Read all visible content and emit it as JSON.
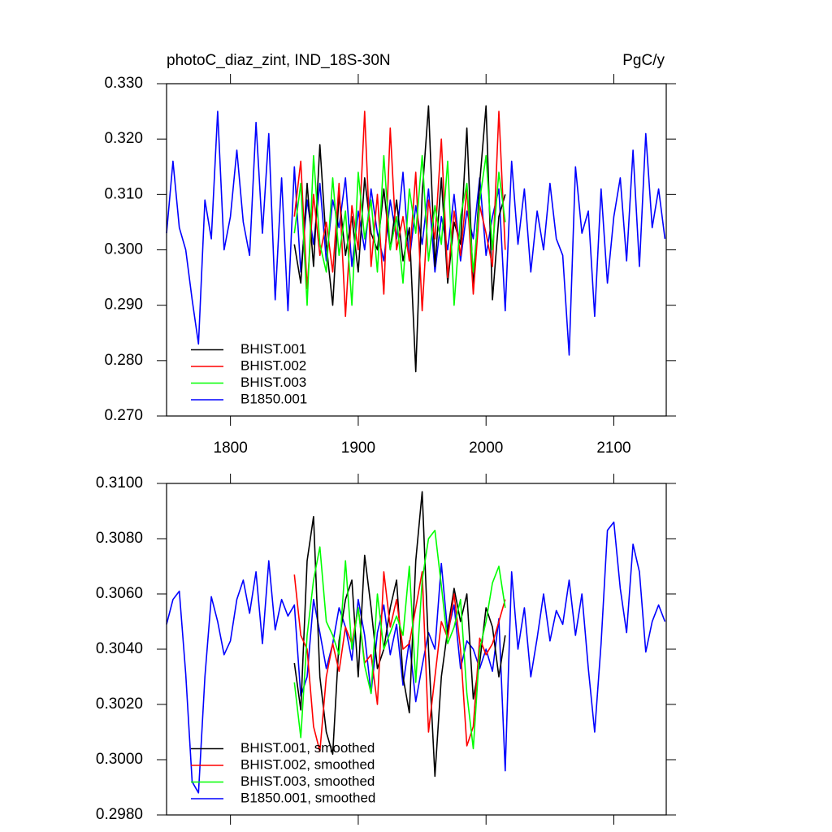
{
  "chart_data": [
    {
      "type": "line",
      "title": "photoC_diaz_zint, IND_18S-30N",
      "units": "PgC/y",
      "xlim": [
        1750,
        2141
      ],
      "xticks": [
        1800,
        1900,
        2000,
        2100
      ],
      "xtick_labels": true,
      "ylim": [
        0.27,
        0.33
      ],
      "yticks": [
        {
          "value": 0.27,
          "label": "0.270"
        },
        {
          "value": 0.28,
          "label": "0.280"
        },
        {
          "value": 0.29,
          "label": "0.290"
        },
        {
          "value": 0.3,
          "label": "0.300"
        },
        {
          "value": 0.31,
          "label": "0.310"
        },
        {
          "value": 0.32,
          "label": "0.320"
        },
        {
          "value": 0.33,
          "label": "0.330"
        }
      ],
      "legend": "lower left",
      "series": [
        {
          "name": "B1850.001",
          "color": "#0000ff",
          "x": [
            1750,
            1755,
            1760,
            1765,
            1770,
            1775,
            1780,
            1785,
            1790,
            1795,
            1800,
            1805,
            1810,
            1815,
            1820,
            1825,
            1830,
            1835,
            1840,
            1845,
            1850,
            1855,
            1860,
            1865,
            1870,
            1875,
            1880,
            1885,
            1890,
            1895,
            1900,
            1905,
            1910,
            1915,
            1920,
            1925,
            1930,
            1935,
            1940,
            1945,
            1950,
            1955,
            1960,
            1965,
            1970,
            1975,
            1980,
            1985,
            1990,
            1995,
            2000,
            2005,
            2010,
            2015,
            2020,
            2025,
            2030,
            2035,
            2040,
            2045,
            2050,
            2055,
            2060,
            2065,
            2070,
            2075,
            2080,
            2085,
            2090,
            2095,
            2100,
            2105,
            2110,
            2115,
            2120,
            2125,
            2130,
            2135,
            2140
          ],
          "values": [
            0.303,
            0.316,
            0.304,
            0.3,
            0.291,
            0.283,
            0.309,
            0.302,
            0.325,
            0.3,
            0.306,
            0.318,
            0.305,
            0.299,
            0.323,
            0.303,
            0.321,
            0.291,
            0.313,
            0.289,
            0.315,
            0.296,
            0.309,
            0.301,
            0.312,
            0.298,
            0.309,
            0.304,
            0.313,
            0.297,
            0.307,
            0.3,
            0.311,
            0.303,
            0.298,
            0.309,
            0.302,
            0.314,
            0.298,
            0.308,
            0.301,
            0.311,
            0.296,
            0.306,
            0.3,
            0.31,
            0.298,
            0.307,
            0.302,
            0.313,
            0.299,
            0.306,
            0.311,
            0.289,
            0.316,
            0.301,
            0.311,
            0.296,
            0.307,
            0.3,
            0.312,
            0.302,
            0.299,
            0.281,
            0.315,
            0.303,
            0.307,
            0.288,
            0.311,
            0.294,
            0.306,
            0.313,
            0.298,
            0.318,
            0.297,
            0.321,
            0.304,
            0.311,
            0.302
          ]
        },
        {
          "name": "BHIST.001",
          "color": "#000000",
          "x": [
            1850,
            1855,
            1860,
            1865,
            1870,
            1875,
            1880,
            1885,
            1890,
            1895,
            1900,
            1905,
            1910,
            1915,
            1920,
            1925,
            1930,
            1935,
            1940,
            1945,
            1950,
            1955,
            1960,
            1965,
            1970,
            1975,
            1980,
            1985,
            1990,
            1995,
            2000,
            2005,
            2010,
            2015
          ],
          "values": [
            0.301,
            0.294,
            0.312,
            0.297,
            0.319,
            0.301,
            0.29,
            0.31,
            0.299,
            0.306,
            0.296,
            0.313,
            0.303,
            0.3,
            0.311,
            0.3,
            0.309,
            0.298,
            0.304,
            0.278,
            0.31,
            0.326,
            0.297,
            0.313,
            0.294,
            0.305,
            0.301,
            0.322,
            0.293,
            0.312,
            0.326,
            0.291,
            0.306,
            0.31
          ]
        },
        {
          "name": "BHIST.002",
          "color": "#ff0000",
          "x": [
            1850,
            1855,
            1860,
            1865,
            1870,
            1875,
            1880,
            1885,
            1890,
            1895,
            1900,
            1905,
            1910,
            1915,
            1920,
            1925,
            1930,
            1935,
            1940,
            1945,
            1950,
            1955,
            1960,
            1965,
            1970,
            1975,
            1980,
            1985,
            1990,
            1995,
            2000,
            2005,
            2010,
            2015
          ],
          "values": [
            0.306,
            0.316,
            0.293,
            0.31,
            0.299,
            0.305,
            0.296,
            0.312,
            0.288,
            0.308,
            0.3,
            0.325,
            0.297,
            0.31,
            0.292,
            0.322,
            0.3,
            0.306,
            0.298,
            0.314,
            0.289,
            0.309,
            0.302,
            0.32,
            0.295,
            0.307,
            0.299,
            0.311,
            0.292,
            0.308,
            0.303,
            0.297,
            0.325,
            0.3
          ]
        },
        {
          "name": "BHIST.003",
          "color": "#00ff00",
          "x": [
            1850,
            1855,
            1860,
            1865,
            1870,
            1875,
            1880,
            1885,
            1890,
            1895,
            1900,
            1905,
            1910,
            1915,
            1920,
            1925,
            1930,
            1935,
            1940,
            1945,
            1950,
            1955,
            1960,
            1965,
            1970,
            1975,
            1980,
            1985,
            1990,
            1995,
            2000,
            2005,
            2010,
            2015
          ],
          "values": [
            0.303,
            0.312,
            0.29,
            0.317,
            0.301,
            0.296,
            0.313,
            0.299,
            0.307,
            0.29,
            0.314,
            0.302,
            0.309,
            0.296,
            0.317,
            0.3,
            0.306,
            0.294,
            0.311,
            0.303,
            0.317,
            0.298,
            0.308,
            0.301,
            0.316,
            0.29,
            0.306,
            0.312,
            0.296,
            0.309,
            0.317,
            0.3,
            0.314,
            0.305
          ]
        }
      ],
      "legend_order": [
        "BHIST.001",
        "BHIST.002",
        "BHIST.003",
        "B1850.001"
      ]
    },
    {
      "type": "line",
      "xlim": [
        1750,
        2141
      ],
      "xticks": [
        1800,
        1900,
        2000,
        2100
      ],
      "xtick_labels": false,
      "ylim": [
        0.298,
        0.31
      ],
      "yticks": [
        {
          "value": 0.298,
          "label": "0.2980"
        },
        {
          "value": 0.3,
          "label": "0.3000"
        },
        {
          "value": 0.302,
          "label": "0.3020"
        },
        {
          "value": 0.304,
          "label": "0.3040"
        },
        {
          "value": 0.306,
          "label": "0.3060"
        },
        {
          "value": 0.308,
          "label": "0.3080"
        },
        {
          "value": 0.31,
          "label": "0.3100"
        }
      ],
      "legend": "lower left",
      "series": [
        {
          "name": "B1850.001, smoothed",
          "color": "#0000ff",
          "x": [
            1750,
            1755,
            1760,
            1765,
            1770,
            1775,
            1780,
            1785,
            1790,
            1795,
            1800,
            1805,
            1810,
            1815,
            1820,
            1825,
            1830,
            1835,
            1840,
            1845,
            1850,
            1855,
            1860,
            1865,
            1870,
            1875,
            1880,
            1885,
            1890,
            1895,
            1900,
            1905,
            1910,
            1915,
            1920,
            1925,
            1930,
            1935,
            1940,
            1945,
            1950,
            1955,
            1960,
            1965,
            1970,
            1975,
            1980,
            1985,
            1990,
            1995,
            2000,
            2005,
            2010,
            2015,
            2020,
            2025,
            2030,
            2035,
            2040,
            2045,
            2050,
            2055,
            2060,
            2065,
            2070,
            2075,
            2080,
            2085,
            2090,
            2095,
            2100,
            2105,
            2110,
            2115,
            2120,
            2125,
            2130,
            2135,
            2140
          ],
          "values": [
            0.3049,
            0.3058,
            0.3061,
            0.3031,
            0.2992,
            0.2988,
            0.303,
            0.3059,
            0.305,
            0.3038,
            0.3043,
            0.3058,
            0.3065,
            0.3053,
            0.3068,
            0.3042,
            0.3072,
            0.3047,
            0.3058,
            0.3052,
            0.3056,
            0.3023,
            0.303,
            0.3058,
            0.3046,
            0.3033,
            0.3042,
            0.3055,
            0.3048,
            0.3036,
            0.3058,
            0.3045,
            0.3024,
            0.3046,
            0.3056,
            0.3038,
            0.3049,
            0.3027,
            0.3043,
            0.3021,
            0.3034,
            0.3046,
            0.304,
            0.3071,
            0.3046,
            0.3056,
            0.3033,
            0.3043,
            0.304,
            0.3033,
            0.304,
            0.3032,
            0.3051,
            0.2996,
            0.3068,
            0.304,
            0.3055,
            0.303,
            0.3044,
            0.306,
            0.3043,
            0.3054,
            0.3049,
            0.3065,
            0.3045,
            0.306,
            0.3033,
            0.301,
            0.3042,
            0.3083,
            0.3086,
            0.3062,
            0.3046,
            0.3078,
            0.3068,
            0.3039,
            0.305,
            0.3056,
            0.305
          ]
        },
        {
          "name": "BHIST.001, smoothed",
          "color": "#000000",
          "x": [
            1850,
            1855,
            1860,
            1865,
            1870,
            1875,
            1880,
            1885,
            1890,
            1895,
            1900,
            1905,
            1910,
            1915,
            1920,
            1925,
            1930,
            1935,
            1940,
            1945,
            1950,
            1955,
            1960,
            1965,
            1970,
            1975,
            1980,
            1985,
            1990,
            1995,
            2000,
            2005,
            2010,
            2015
          ],
          "values": [
            0.3035,
            0.3018,
            0.3072,
            0.3088,
            0.303,
            0.301,
            0.3002,
            0.3043,
            0.3058,
            0.3065,
            0.303,
            0.3074,
            0.3055,
            0.3033,
            0.304,
            0.3055,
            0.3065,
            0.303,
            0.3017,
            0.3072,
            0.3097,
            0.304,
            0.2994,
            0.303,
            0.3047,
            0.3062,
            0.305,
            0.306,
            0.3022,
            0.3035,
            0.3055,
            0.3048,
            0.303,
            0.3045
          ]
        },
        {
          "name": "BHIST.002, smoothed",
          "color": "#ff0000",
          "x": [
            1850,
            1855,
            1860,
            1865,
            1870,
            1875,
            1880,
            1885,
            1890,
            1895,
            1900,
            1905,
            1910,
            1915,
            1920,
            1925,
            1930,
            1935,
            1940,
            1945,
            1950,
            1955,
            1960,
            1965,
            1970,
            1975,
            1980,
            1985,
            1990,
            1995,
            2000,
            2005,
            2010,
            2015
          ],
          "values": [
            0.3067,
            0.3045,
            0.304,
            0.3012,
            0.3003,
            0.303,
            0.3042,
            0.3032,
            0.3048,
            0.3042,
            0.3055,
            0.3035,
            0.3038,
            0.302,
            0.3068,
            0.3048,
            0.3058,
            0.304,
            0.3042,
            0.3055,
            0.3068,
            0.301,
            0.303,
            0.305,
            0.3044,
            0.306,
            0.304,
            0.3005,
            0.3012,
            0.3044,
            0.3038,
            0.3042,
            0.305,
            0.3058
          ]
        },
        {
          "name": "BHIST.003, smoothed",
          "color": "#00ff00",
          "x": [
            1850,
            1855,
            1860,
            1865,
            1870,
            1875,
            1880,
            1885,
            1890,
            1895,
            1900,
            1905,
            1910,
            1915,
            1920,
            1925,
            1930,
            1935,
            1940,
            1945,
            1950,
            1955,
            1960,
            1965,
            1970,
            1975,
            1980,
            1985,
            1990,
            1995,
            2000,
            2005,
            2010,
            2015
          ],
          "values": [
            0.3028,
            0.3008,
            0.3045,
            0.3065,
            0.3077,
            0.305,
            0.3045,
            0.3038,
            0.3072,
            0.304,
            0.3055,
            0.3034,
            0.3024,
            0.306,
            0.304,
            0.3046,
            0.3052,
            0.3045,
            0.307,
            0.3028,
            0.3065,
            0.308,
            0.3083,
            0.3063,
            0.3042,
            0.3048,
            0.3058,
            0.3024,
            0.3004,
            0.304,
            0.305,
            0.3064,
            0.307,
            0.3055
          ]
        }
      ],
      "legend_order": [
        "BHIST.001, smoothed",
        "BHIST.002, smoothed",
        "BHIST.003, smoothed",
        "B1850.001, smoothed"
      ]
    }
  ]
}
